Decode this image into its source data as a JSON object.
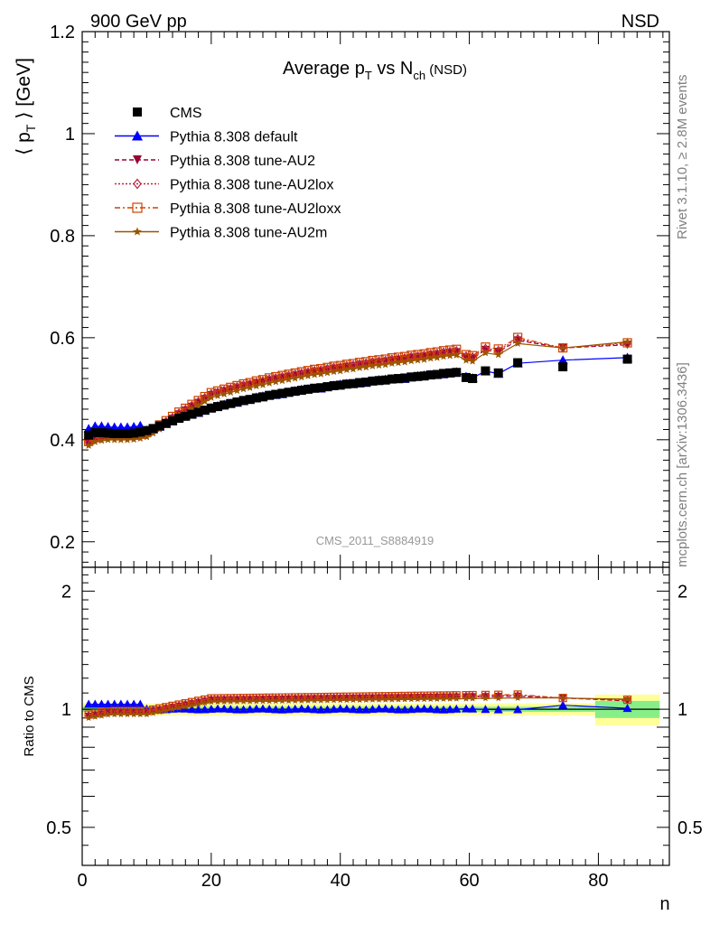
{
  "header": {
    "left": "900 GeV pp",
    "right": "NSD"
  },
  "side_labels": {
    "rivet": "Rivet 3.1.10, ≥ 2.8M events",
    "mcplots": "mcplots.cern.ch [arXiv:1306.3436]"
  },
  "chart_data": {
    "type": "scatter",
    "title": "Average p_T vs N_ch (NSD)",
    "title_parts": {
      "a": "Average p",
      "b": "T",
      "c": " vs N",
      "d": "ch",
      "e": " (NSD)"
    },
    "ylabel_parts": {
      "a": "⟨ p",
      "b": "T",
      "c": " ⟩ [GeV]"
    },
    "xlabel": "n",
    "ratio_ylabel": "Ratio to CMS",
    "watermark": "CMS_2011_S8884919",
    "xlim": [
      0,
      91
    ],
    "ylim": [
      0.15,
      1.2
    ],
    "ratio_ylim": [
      0.4,
      2.3
    ],
    "ratio_log": true,
    "x_ticks": [
      "0",
      "20",
      "40",
      "60",
      "80"
    ],
    "y_ticks": [
      "0.2",
      "0.4",
      "0.6",
      "0.8",
      "1",
      "1.2"
    ],
    "ratio_ticks": [
      "0.5",
      "1",
      "2"
    ],
    "x": [
      1,
      2,
      3,
      4,
      5,
      6,
      7,
      8,
      9,
      10,
      11,
      12,
      13,
      14,
      15,
      16,
      17,
      18,
      19,
      20,
      21,
      22,
      23,
      24,
      25,
      26,
      27,
      28,
      29,
      30,
      31,
      32,
      33,
      34,
      35,
      36,
      37,
      38,
      39,
      40,
      41,
      42,
      43,
      44,
      45,
      46,
      47,
      48,
      49,
      50,
      51,
      52,
      53,
      54,
      55,
      56,
      57,
      58,
      59.5,
      60.5,
      62.5,
      64.5,
      67.5,
      74.5,
      84.5
    ],
    "cms": [
      0.409,
      0.414,
      0.414,
      0.413,
      0.412,
      0.412,
      0.412,
      0.413,
      0.415,
      0.418,
      0.422,
      0.427,
      0.432,
      0.437,
      0.442,
      0.446,
      0.45,
      0.454,
      0.458,
      0.462,
      0.465,
      0.468,
      0.471,
      0.474,
      0.477,
      0.479,
      0.482,
      0.484,
      0.487,
      0.489,
      0.491,
      0.493,
      0.495,
      0.497,
      0.499,
      0.501,
      0.502,
      0.504,
      0.506,
      0.507,
      0.509,
      0.51,
      0.512,
      0.513,
      0.515,
      0.516,
      0.517,
      0.519,
      0.52,
      0.521,
      0.523,
      0.524,
      0.525,
      0.527,
      0.528,
      0.53,
      0.531,
      0.532,
      0.522,
      0.52,
      0.535,
      0.531,
      0.551,
      0.543,
      0.558
    ],
    "series": [
      {
        "name": "CMS",
        "ref": "cms",
        "color": "#000000",
        "marker": "square",
        "line": "none"
      },
      {
        "name": "Pythia 8.308 default",
        "color": "#0000ff",
        "marker": "triangle-up",
        "line": "solid"
      },
      {
        "name": "Pythia 8.308 tune-AU2",
        "color": "#990033",
        "marker": "triangle-down",
        "line": "dashed"
      },
      {
        "name": "Pythia 8.308 tune-AU2lox",
        "color": "#bb2244",
        "marker": "diamond-open",
        "line": "dotted"
      },
      {
        "name": "Pythia 8.308 tune-AU2loxx",
        "color": "#cc4400",
        "marker": "square-open",
        "line": "dashdot"
      },
      {
        "name": "Pythia 8.308 tune-AU2m",
        "color": "#995500",
        "marker": "star",
        "line": "solid"
      }
    ],
    "ratio_bands": [
      {
        "x": [
          0,
          79.5
        ],
        "green": [
          0.985,
          1.015
        ],
        "yellow": [
          0.965,
          1.035
        ]
      },
      {
        "x": [
          79.5,
          89.5
        ],
        "green": [
          0.95,
          1.05
        ],
        "yellow": [
          0.91,
          1.09
        ]
      }
    ]
  }
}
